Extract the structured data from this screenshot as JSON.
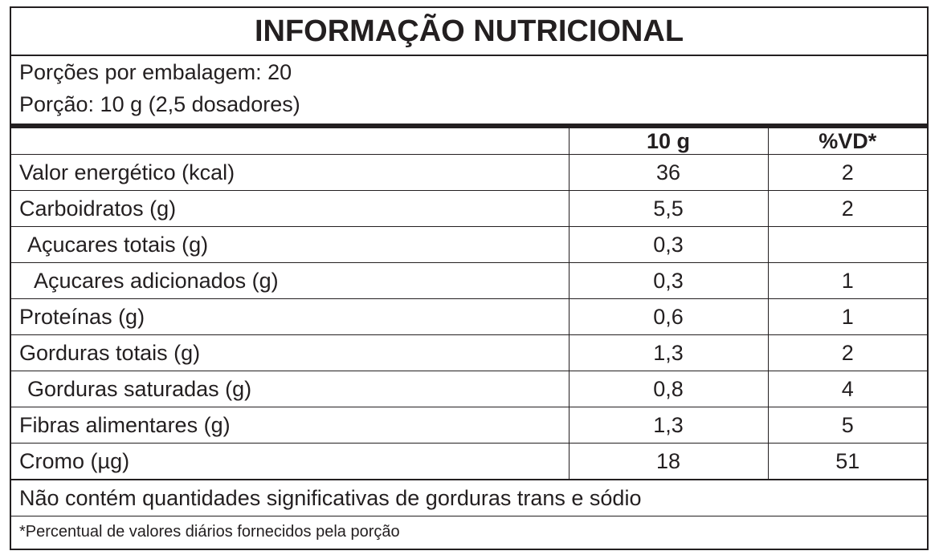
{
  "title": "INFORMAÇÃO NUTRICIONAL",
  "servings_per_package": "Porções por embalagem: 20",
  "serving_size": "Porção: 10 g (2,5 dosadores)",
  "columns": {
    "amount": "10 g",
    "dv": "%VD*"
  },
  "rows": [
    {
      "name": "Valor energético (kcal)",
      "amount": "36",
      "dv": "2"
    },
    {
      "name": "Carboidratos (g)",
      "amount": "5,5",
      "dv": "2"
    },
    {
      "name": "Açucares totais (g)",
      "amount": "0,3",
      "dv": ""
    },
    {
      "name": "Açucares adicionados (g)",
      "amount": "0,3",
      "dv": "1"
    },
    {
      "name": "Proteínas (g)",
      "amount": "0,6",
      "dv": "1"
    },
    {
      "name": "Gorduras totais (g)",
      "amount": "1,3",
      "dv": "2"
    },
    {
      "name": "Gorduras saturadas (g)",
      "amount": "0,8",
      "dv": "4"
    },
    {
      "name": "Fibras alimentares (g)",
      "amount": "1,3",
      "dv": "5"
    },
    {
      "name": "Cromo (µg)",
      "amount": "18",
      "dv": "51"
    }
  ],
  "footnote_main": "Não contém quantidades significativas de gorduras trans e sódio",
  "footnote_dv": "*Percentual de valores diários fornecidos pela porção"
}
